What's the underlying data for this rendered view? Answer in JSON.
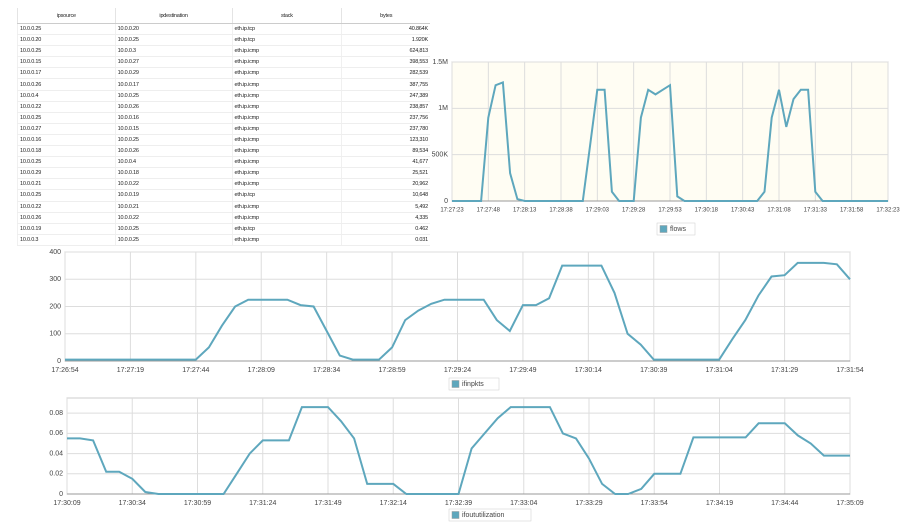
{
  "table": {
    "columns": [
      "ipsource",
      "ipdestination",
      "stack",
      "bytes"
    ],
    "rows": [
      [
        "10.0.0.25",
        "10.0.0.20",
        "eth.ip.tcp",
        "40.864K"
      ],
      [
        "10.0.0.20",
        "10.0.0.25",
        "eth.ip.tcp",
        "1.920K"
      ],
      [
        "10.0.0.25",
        "10.0.0.3",
        "eth.ip.icmp",
        "624,813"
      ],
      [
        "10.0.0.15",
        "10.0.0.27",
        "eth.ip.icmp",
        "398,553"
      ],
      [
        "10.0.0.17",
        "10.0.0.29",
        "eth.ip.icmp",
        "282,539"
      ],
      [
        "10.0.0.26",
        "10.0.0.17",
        "eth.ip.icmp",
        "387,755"
      ],
      [
        "10.0.0.4",
        "10.0.0.25",
        "eth.ip.icmp",
        "247,389"
      ],
      [
        "10.0.0.22",
        "10.0.0.26",
        "eth.ip.icmp",
        "238,857"
      ],
      [
        "10.0.0.25",
        "10.0.0.16",
        "eth.ip.icmp",
        "237,756"
      ],
      [
        "10.0.0.27",
        "10.0.0.15",
        "eth.ip.icmp",
        "237,780"
      ],
      [
        "10.0.0.16",
        "10.0.0.25",
        "eth.ip.icmp",
        "123,310"
      ],
      [
        "10.0.0.18",
        "10.0.0.26",
        "eth.ip.icmp",
        "89,534"
      ],
      [
        "10.0.0.25",
        "10.0.0.4",
        "eth.ip.icmp",
        "41,677"
      ],
      [
        "10.0.0.29",
        "10.0.0.18",
        "eth.ip.icmp",
        "25,521"
      ],
      [
        "10.0.0.21",
        "10.0.0.22",
        "eth.ip.icmp",
        "20,962"
      ],
      [
        "10.0.0.25",
        "10.0.0.19",
        "eth.ip.tcp",
        "10,648"
      ],
      [
        "10.0.0.22",
        "10.0.0.21",
        "eth.ip.icmp",
        "5,492"
      ],
      [
        "10.0.0.26",
        "10.0.0.22",
        "eth.ip.icmp",
        "4,335"
      ],
      [
        "10.0.0.19",
        "10.0.0.25",
        "eth.ip.tcp",
        "0.462"
      ],
      [
        "10.0.0.3",
        "10.0.0.25",
        "eth.ip.icmp",
        "0.031"
      ]
    ]
  },
  "chart_data": [
    {
      "type": "line",
      "grid": true,
      "categories": [
        "17:27:23",
        null,
        null,
        null,
        null,
        "17:27:48",
        null,
        null,
        null,
        null,
        "17:28:13",
        null,
        null,
        null,
        null,
        "17:28:38",
        null,
        null,
        null,
        null,
        "17:29:03",
        null,
        null,
        null,
        null,
        "17:29:28",
        null,
        null,
        null,
        null,
        "17:29:53",
        null,
        null,
        null,
        null,
        "17:30:18",
        null,
        null,
        null,
        null,
        "17:30:43",
        null,
        null,
        null,
        null,
        "17:31:08",
        null,
        null,
        null,
        null,
        "17:31:33",
        null,
        null,
        null,
        null,
        "17:31:58",
        null,
        null,
        null,
        null,
        "17:32:23"
      ],
      "ylim": [
        0,
        1500000
      ],
      "yticks": [
        0,
        {
          "value": 500000,
          "label": "500K"
        },
        {
          "value": 1000000,
          "label": "1M"
        },
        {
          "value": 1500000,
          "label": "1.5M"
        }
      ],
      "series": [
        {
          "name": "flows",
          "color": "#5ea7bd",
          "values": [
            0,
            0,
            0,
            0,
            0,
            900000,
            1250000,
            1280000,
            300000,
            20000,
            0,
            0,
            0,
            0,
            0,
            0,
            0,
            0,
            0,
            600000,
            1200000,
            1200000,
            100000,
            0,
            0,
            0,
            900000,
            1200000,
            1150000,
            1200000,
            1250000,
            50000,
            0,
            0,
            0,
            0,
            0,
            0,
            0,
            0,
            0,
            0,
            0,
            100000,
            900000,
            1200000,
            800000,
            1100000,
            1200000,
            1200000,
            100000,
            0,
            0,
            0,
            0,
            0,
            0,
            0,
            0,
            0,
            0
          ]
        }
      ]
    },
    {
      "type": "line",
      "grid": true,
      "categories": [
        "17:26:54",
        null,
        null,
        null,
        null,
        "17:27:19",
        null,
        null,
        null,
        null,
        "17:27:44",
        null,
        null,
        null,
        null,
        "17:28:09",
        null,
        null,
        null,
        null,
        "17:28:34",
        null,
        null,
        null,
        null,
        "17:28:59",
        null,
        null,
        null,
        null,
        "17:29:24",
        null,
        null,
        null,
        null,
        "17:29:49",
        null,
        null,
        null,
        null,
        "17:30:14",
        null,
        null,
        null,
        null,
        "17:30:39",
        null,
        null,
        null,
        null,
        "17:31:04",
        null,
        null,
        null,
        null,
        "17:31:29",
        null,
        null,
        null,
        null,
        "17:31:54"
      ],
      "ylim": [
        0,
        400
      ],
      "yticks": [
        0,
        100,
        200,
        300,
        400
      ],
      "series": [
        {
          "name": "ifinpkts",
          "color": "#5ea7bd",
          "values": [
            5,
            5,
            5,
            5,
            5,
            5,
            5,
            5,
            5,
            5,
            5,
            50,
            130,
            200,
            225,
            225,
            225,
            225,
            205,
            200,
            110,
            20,
            5,
            5,
            5,
            50,
            150,
            185,
            210,
            225,
            225,
            225,
            225,
            150,
            110,
            205,
            205,
            230,
            350,
            350,
            350,
            350,
            250,
            100,
            60,
            5,
            5,
            5,
            5,
            5,
            5,
            80,
            150,
            240,
            310,
            315,
            360,
            360,
            360,
            355,
            300
          ]
        }
      ]
    },
    {
      "type": "line",
      "grid": true,
      "categories": [
        "17:30:09",
        null,
        null,
        null,
        null,
        "17:30:34",
        null,
        null,
        null,
        null,
        "17:30:59",
        null,
        null,
        null,
        null,
        "17:31:24",
        null,
        null,
        null,
        null,
        "17:31:49",
        null,
        null,
        null,
        null,
        "17:32:14",
        null,
        null,
        null,
        null,
        "17:32:39",
        null,
        null,
        null,
        null,
        "17:33:04",
        null,
        null,
        null,
        null,
        "17:33:29",
        null,
        null,
        null,
        null,
        "17:33:54",
        null,
        null,
        null,
        null,
        "17:34:19",
        null,
        null,
        null,
        null,
        "17:34:44",
        null,
        null,
        null,
        null,
        "17:35:09"
      ],
      "ylim": [
        0,
        0.095
      ],
      "yticks": [
        0,
        0.02,
        0.04,
        0.06,
        0.08
      ],
      "series": [
        {
          "name": "ifoututilization",
          "color": "#5ea7bd",
          "values": [
            0.055,
            0.055,
            0.053,
            0.022,
            0.022,
            0.015,
            0.002,
            0,
            0,
            0,
            0,
            0,
            0,
            0.02,
            0.04,
            0.053,
            0.053,
            0.053,
            0.086,
            0.086,
            0.086,
            0.072,
            0.055,
            0.01,
            0.01,
            0.01,
            0,
            0,
            0,
            0,
            0,
            0.045,
            0.06,
            0.075,
            0.086,
            0.086,
            0.086,
            0.086,
            0.06,
            0.055,
            0.035,
            0.01,
            0,
            0,
            0.005,
            0.02,
            0.02,
            0.02,
            0.056,
            0.056,
            0.056,
            0.056,
            0.056,
            0.07,
            0.07,
            0.07,
            0.058,
            0.05,
            0.038,
            0.038,
            0.038
          ]
        }
      ]
    }
  ]
}
